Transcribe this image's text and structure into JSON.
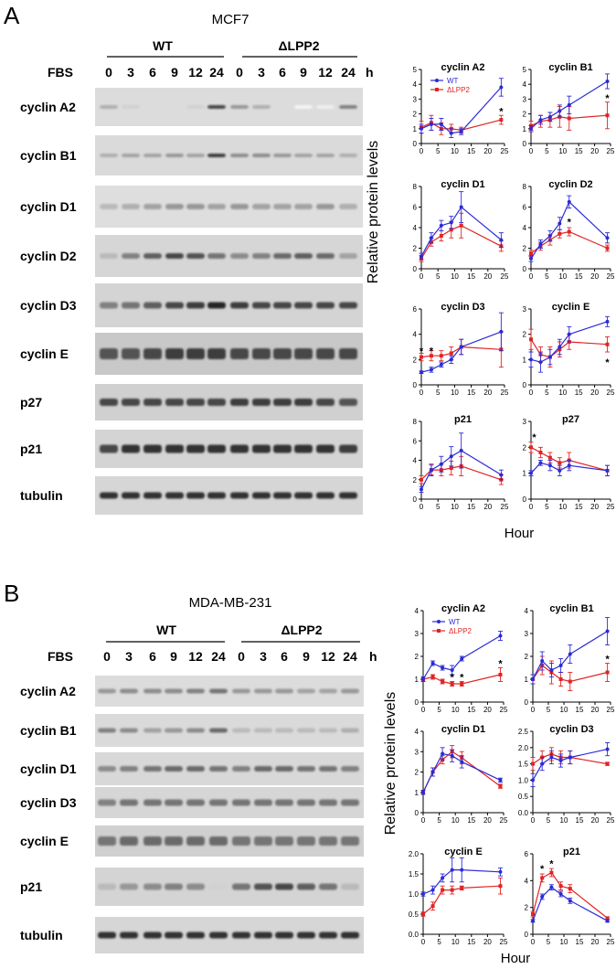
{
  "panels": [
    {
      "letter": "A",
      "cell_line": "MCF7",
      "group_labels": [
        "WT",
        "ΔLPP2"
      ],
      "fbs_label": "FBS",
      "time_points": [
        "0",
        "3",
        "6",
        "9",
        "12",
        "24"
      ],
      "time_unit": "h",
      "blot_rows": [
        {
          "label": "cyclin A2",
          "band": "A2a"
        },
        {
          "label": "cyclin B1",
          "band": "B1a"
        },
        {
          "label": "cyclin D1",
          "band": "D1a"
        },
        {
          "label": "cyclin D2",
          "band": "D2a"
        },
        {
          "label": "cyclin D3",
          "band": "D3a"
        },
        {
          "label": "cyclin E",
          "band": "Ea"
        },
        {
          "label": "p27",
          "band": "p27a"
        },
        {
          "label": "p21",
          "band": "p21a"
        },
        {
          "label": "tubulin",
          "band": "tub"
        }
      ],
      "ylabel": "Relative protein levels",
      "xlabel": "Hour"
    },
    {
      "letter": "B",
      "cell_line": "MDA-MB-231",
      "group_labels": [
        "WT",
        "ΔLPP2"
      ],
      "fbs_label": "FBS",
      "time_points": [
        "0",
        "3",
        "6",
        "9",
        "12",
        "24"
      ],
      "time_unit": "h",
      "blot_rows": [
        {
          "label": "cyclin A2",
          "band": "A2b"
        },
        {
          "label": "cyclin B1",
          "band": "B1b"
        },
        {
          "label": "cyclin D1",
          "band": "D1b"
        },
        {
          "label": "cyclin D3",
          "band": "D3b"
        },
        {
          "label": "cyclin E",
          "band": "Eb"
        },
        {
          "label": "p21",
          "band": "p21b"
        },
        {
          "label": "tubulin",
          "band": "tub"
        }
      ],
      "ylabel": "Relative protein levels",
      "xlabel": "Hour"
    }
  ],
  "colors": {
    "wt": "#2b2bd6",
    "lpp2": "#e02424"
  },
  "chart_data": [
    {
      "type": "line",
      "panel": "A",
      "title": "cyclin A2",
      "x": [
        0,
        3,
        6,
        9,
        12,
        24
      ],
      "xlim": [
        0,
        25
      ],
      "xticks": [
        0,
        5,
        10,
        15,
        20,
        25
      ],
      "ylim": [
        0,
        5
      ],
      "yticks": [
        0,
        1,
        2,
        3,
        4,
        5
      ],
      "legend": true,
      "legend_labels": [
        "WT",
        "ΔLPP2"
      ],
      "series": [
        {
          "name": "WT",
          "values": [
            1.0,
            1.3,
            1.3,
            0.7,
            0.8,
            3.8
          ],
          "errors": [
            0.3,
            0.4,
            0.4,
            0.3,
            0.2,
            0.6
          ]
        },
        {
          "name": "ΔLPP2",
          "values": [
            1.1,
            1.4,
            1.0,
            1.0,
            0.9,
            1.6
          ],
          "errors": [
            0.4,
            0.5,
            0.4,
            0.3,
            0.2,
            0.3
          ]
        }
      ],
      "annotations": [
        {
          "x": 24,
          "y": 2.2,
          "text": "*"
        }
      ]
    },
    {
      "type": "line",
      "panel": "A",
      "title": "cyclin B1",
      "x": [
        0,
        3,
        6,
        9,
        12,
        24
      ],
      "xlim": [
        0,
        25
      ],
      "xticks": [
        0,
        5,
        10,
        15,
        20,
        25
      ],
      "ylim": [
        0,
        5
      ],
      "yticks": [
        0,
        1,
        2,
        3,
        4,
        5
      ],
      "series": [
        {
          "name": "WT",
          "values": [
            1.0,
            1.6,
            1.8,
            2.2,
            2.6,
            4.2
          ],
          "errors": [
            0.2,
            0.3,
            0.3,
            0.4,
            0.6,
            0.5
          ]
        },
        {
          "name": "ΔLPP2",
          "values": [
            1.2,
            1.5,
            1.6,
            1.8,
            1.7,
            1.9
          ],
          "errors": [
            0.3,
            0.4,
            0.5,
            0.7,
            0.8,
            0.9
          ]
        }
      ],
      "annotations": [
        {
          "x": 24,
          "y": 3.1,
          "text": "*"
        }
      ]
    },
    {
      "type": "line",
      "panel": "A",
      "title": "cyclin D1",
      "x": [
        0,
        3,
        6,
        9,
        12,
        24
      ],
      "xlim": [
        0,
        25
      ],
      "xticks": [
        0,
        5,
        10,
        15,
        20,
        25
      ],
      "ylim": [
        0,
        8
      ],
      "yticks": [
        0,
        2,
        4,
        6,
        8
      ],
      "series": [
        {
          "name": "WT",
          "values": [
            1.2,
            3.0,
            4.2,
            4.5,
            6.0,
            2.8
          ],
          "errors": [
            0.3,
            0.5,
            0.5,
            0.6,
            1.5,
            0.7
          ]
        },
        {
          "name": "ΔLPP2",
          "values": [
            1.0,
            2.6,
            3.2,
            3.8,
            4.2,
            2.2
          ],
          "errors": [
            0.3,
            0.4,
            0.5,
            0.8,
            1.2,
            0.5
          ]
        }
      ],
      "annotations": []
    },
    {
      "type": "line",
      "panel": "A",
      "title": "cyclin D2",
      "x": [
        0,
        3,
        6,
        9,
        12,
        24
      ],
      "xlim": [
        0,
        25
      ],
      "xticks": [
        0,
        5,
        10,
        15,
        20,
        25
      ],
      "ylim": [
        0,
        8
      ],
      "yticks": [
        0,
        2,
        4,
        6,
        8
      ],
      "series": [
        {
          "name": "WT",
          "values": [
            1.0,
            2.4,
            3.2,
            4.4,
            6.5,
            3.0
          ],
          "errors": [
            0.3,
            0.4,
            0.5,
            0.6,
            0.6,
            0.5
          ]
        },
        {
          "name": "ΔLPP2",
          "values": [
            1.5,
            2.2,
            2.8,
            3.4,
            3.6,
            2.0
          ],
          "errors": [
            0.3,
            0.4,
            0.5,
            0.4,
            0.4,
            0.3
          ]
        }
      ],
      "annotations": [
        {
          "x": 12,
          "y": 4.6,
          "text": "*"
        }
      ]
    },
    {
      "type": "line",
      "panel": "A",
      "title": "cyclin D3",
      "x": [
        0,
        3,
        6,
        9,
        12,
        24
      ],
      "xlim": [
        0,
        25
      ],
      "xticks": [
        0,
        5,
        10,
        15,
        20,
        25
      ],
      "ylim": [
        0,
        6
      ],
      "yticks": [
        0,
        2,
        4,
        6
      ],
      "series": [
        {
          "name": "WT",
          "values": [
            1.0,
            1.2,
            1.6,
            2.0,
            3.0,
            4.2
          ],
          "errors": [
            0.1,
            0.2,
            0.2,
            0.3,
            0.6,
            1.5
          ]
        },
        {
          "name": "ΔLPP2",
          "values": [
            2.2,
            2.3,
            2.3,
            2.5,
            3.0,
            2.8
          ],
          "errors": [
            0.3,
            0.4,
            0.4,
            0.5,
            0.6,
            1.4
          ]
        }
      ],
      "annotations": [
        {
          "x": 0,
          "y": 2.7,
          "text": "*"
        },
        {
          "x": 3,
          "y": 2.7,
          "text": "*"
        }
      ]
    },
    {
      "type": "line",
      "panel": "A",
      "title": "cyclin E",
      "x": [
        0,
        3,
        6,
        9,
        12,
        24
      ],
      "xlim": [
        0,
        25
      ],
      "xticks": [
        0,
        5,
        10,
        15,
        20,
        25
      ],
      "ylim": [
        0,
        3
      ],
      "yticks": [
        0,
        1,
        2,
        3
      ],
      "series": [
        {
          "name": "WT",
          "values": [
            1.0,
            0.9,
            1.1,
            1.5,
            2.0,
            2.5
          ],
          "errors": [
            0.3,
            0.4,
            0.3,
            0.3,
            0.3,
            0.2
          ]
        },
        {
          "name": "ΔLPP2",
          "values": [
            1.8,
            1.2,
            1.1,
            1.4,
            1.7,
            1.6
          ],
          "errors": [
            0.4,
            0.3,
            0.4,
            0.3,
            0.3,
            0.3
          ]
        }
      ],
      "annotations": [
        {
          "x": 24,
          "y": 0.9,
          "text": "*"
        }
      ]
    },
    {
      "type": "line",
      "panel": "A",
      "title": "p21",
      "x": [
        0,
        3,
        6,
        9,
        12,
        24
      ],
      "xlim": [
        0,
        25
      ],
      "xticks": [
        0,
        5,
        10,
        15,
        20,
        25
      ],
      "ylim": [
        0,
        8
      ],
      "yticks": [
        0,
        2,
        4,
        6,
        8
      ],
      "series": [
        {
          "name": "WT",
          "values": [
            1.0,
            3.0,
            3.6,
            4.4,
            5.0,
            2.5
          ],
          "errors": [
            0.3,
            0.6,
            0.8,
            1.0,
            1.8,
            0.5
          ]
        },
        {
          "name": "ΔLPP2",
          "values": [
            2.0,
            3.0,
            3.0,
            3.2,
            3.4,
            2.0
          ],
          "errors": [
            0.4,
            0.5,
            0.6,
            0.7,
            1.0,
            0.5
          ]
        }
      ],
      "annotations": []
    },
    {
      "type": "line",
      "panel": "A",
      "title": "p27",
      "x": [
        0,
        3,
        6,
        9,
        12,
        24
      ],
      "xlim": [
        0,
        25
      ],
      "xticks": [
        0,
        5,
        10,
        15,
        20,
        25
      ],
      "ylim": [
        0,
        3
      ],
      "yticks": [
        0,
        1,
        2,
        3
      ],
      "series": [
        {
          "name": "WT",
          "values": [
            1.0,
            1.4,
            1.3,
            1.1,
            1.3,
            1.1
          ],
          "errors": [
            0.1,
            0.1,
            0.2,
            0.2,
            0.2,
            0.2
          ]
        },
        {
          "name": "ΔLPP2",
          "values": [
            2.0,
            1.8,
            1.6,
            1.4,
            1.5,
            1.1
          ],
          "errors": [
            0.2,
            0.2,
            0.2,
            0.2,
            0.3,
            0.2
          ]
        }
      ],
      "annotations": [
        {
          "x": 1,
          "y": 2.4,
          "text": "*"
        }
      ]
    },
    {
      "type": "line",
      "panel": "B",
      "title": "cyclin A2",
      "x": [
        0,
        3,
        6,
        9,
        12,
        24
      ],
      "xlim": [
        0,
        25
      ],
      "xticks": [
        0,
        5,
        10,
        15,
        20,
        25
      ],
      "ylim": [
        0,
        4
      ],
      "yticks": [
        0,
        1,
        2,
        3,
        4
      ],
      "legend": true,
      "legend_labels": [
        "WT",
        "ΔLPP2"
      ],
      "series": [
        {
          "name": "WT",
          "values": [
            1.0,
            1.7,
            1.5,
            1.4,
            1.9,
            2.9
          ],
          "errors": [
            0.1,
            0.1,
            0.1,
            0.2,
            0.1,
            0.2
          ]
        },
        {
          "name": "ΔLPP2",
          "values": [
            1.0,
            1.1,
            0.9,
            0.8,
            0.8,
            1.2
          ],
          "errors": [
            0.1,
            0.1,
            0.1,
            0.1,
            0.1,
            0.3
          ]
        }
      ],
      "annotations": [
        {
          "x": 9,
          "y": 1.1,
          "text": "*"
        },
        {
          "x": 12,
          "y": 1.1,
          "text": "*"
        },
        {
          "x": 24,
          "y": 1.7,
          "text": "*"
        }
      ]
    },
    {
      "type": "line",
      "panel": "B",
      "title": "cyclin B1",
      "x": [
        0,
        3,
        6,
        9,
        12,
        24
      ],
      "xlim": [
        0,
        25
      ],
      "xticks": [
        0,
        5,
        10,
        15,
        20,
        25
      ],
      "ylim": [
        0,
        4
      ],
      "yticks": [
        0,
        1,
        2,
        3,
        4
      ],
      "series": [
        {
          "name": "WT",
          "values": [
            1.0,
            1.8,
            1.4,
            1.6,
            2.1,
            3.1
          ],
          "errors": [
            0.2,
            0.4,
            0.3,
            0.3,
            0.4,
            0.6
          ]
        },
        {
          "name": "ΔLPP2",
          "values": [
            1.0,
            1.6,
            1.3,
            1.0,
            0.9,
            1.3
          ],
          "errors": [
            0.2,
            0.4,
            0.5,
            0.3,
            0.4,
            0.4
          ]
        }
      ],
      "annotations": [
        {
          "x": 24,
          "y": 1.9,
          "text": "*"
        }
      ]
    },
    {
      "type": "line",
      "panel": "B",
      "title": "cyclin D1",
      "x": [
        0,
        3,
        6,
        9,
        12,
        24
      ],
      "xlim": [
        0,
        25
      ],
      "xticks": [
        0,
        5,
        10,
        15,
        20,
        25
      ],
      "ylim": [
        0,
        4
      ],
      "yticks": [
        0,
        1,
        2,
        3,
        4
      ],
      "series": [
        {
          "name": "WT",
          "values": [
            1.0,
            2.0,
            2.9,
            2.8,
            2.5,
            1.6
          ],
          "errors": [
            0.1,
            0.2,
            0.3,
            0.3,
            0.3,
            0.1
          ]
        },
        {
          "name": "ΔLPP2",
          "values": [
            1.0,
            2.0,
            2.6,
            3.0,
            2.7,
            1.3
          ],
          "errors": [
            0.1,
            0.2,
            0.2,
            0.3,
            0.3,
            0.1
          ]
        }
      ],
      "annotations": []
    },
    {
      "type": "line",
      "panel": "B",
      "title": "cyclin D3",
      "x": [
        0,
        3,
        6,
        9,
        12,
        24
      ],
      "xlim": [
        0,
        25
      ],
      "xticks": [
        0,
        5,
        10,
        15,
        20,
        25
      ],
      "ylim": [
        0,
        2.5
      ],
      "yticks": [
        0,
        0.5,
        1.0,
        1.5,
        2.0,
        2.5
      ],
      "series": [
        {
          "name": "WT",
          "values": [
            1.0,
            1.5,
            1.7,
            1.6,
            1.7,
            1.95
          ],
          "errors": [
            0.2,
            0.2,
            0.2,
            0.2,
            0.2,
            0.2
          ]
        },
        {
          "name": "ΔLPP2",
          "values": [
            1.5,
            1.7,
            1.8,
            1.7,
            1.7,
            1.5
          ],
          "errors": [
            0.2,
            0.2,
            0.2,
            0.2,
            0.2,
            0.05
          ]
        }
      ],
      "annotations": []
    },
    {
      "type": "line",
      "panel": "B",
      "title": "cyclin E",
      "x": [
        0,
        3,
        6,
        9,
        12,
        24
      ],
      "xlim": [
        0,
        25
      ],
      "xticks": [
        0,
        5,
        10,
        15,
        20,
        25
      ],
      "ylim": [
        0,
        2.0
      ],
      "yticks": [
        0,
        0.5,
        1.0,
        1.5,
        2.0
      ],
      "series": [
        {
          "name": "WT",
          "values": [
            1.0,
            1.1,
            1.4,
            1.6,
            1.6,
            1.55
          ],
          "errors": [
            0.05,
            0.1,
            0.1,
            0.3,
            0.3,
            0.1
          ]
        },
        {
          "name": "ΔLPP2",
          "values": [
            0.5,
            0.7,
            1.1,
            1.1,
            1.15,
            1.2
          ],
          "errors": [
            0.05,
            0.1,
            0.1,
            0.1,
            0.05,
            0.2
          ]
        }
      ],
      "annotations": []
    },
    {
      "type": "line",
      "panel": "B",
      "title": "p21",
      "x": [
        0,
        3,
        6,
        9,
        12,
        24
      ],
      "xlim": [
        0,
        25
      ],
      "xticks": [
        0,
        5,
        10,
        15,
        20,
        25
      ],
      "ylim": [
        0,
        6
      ],
      "yticks": [
        0,
        2,
        4,
        6
      ],
      "series": [
        {
          "name": "WT",
          "values": [
            1.0,
            2.8,
            3.5,
            3.0,
            2.5,
            1.0
          ],
          "errors": [
            0.1,
            0.2,
            0.2,
            0.2,
            0.2,
            0.1
          ]
        },
        {
          "name": "ΔLPP2",
          "values": [
            1.5,
            4.2,
            4.6,
            3.6,
            3.4,
            1.2
          ],
          "errors": [
            0.2,
            0.3,
            0.3,
            0.3,
            0.3,
            0.1
          ]
        }
      ],
      "annotations": [
        {
          "x": 3,
          "y": 4.9,
          "text": "*"
        },
        {
          "x": 6,
          "y": 5.3,
          "text": "*"
        }
      ]
    }
  ]
}
